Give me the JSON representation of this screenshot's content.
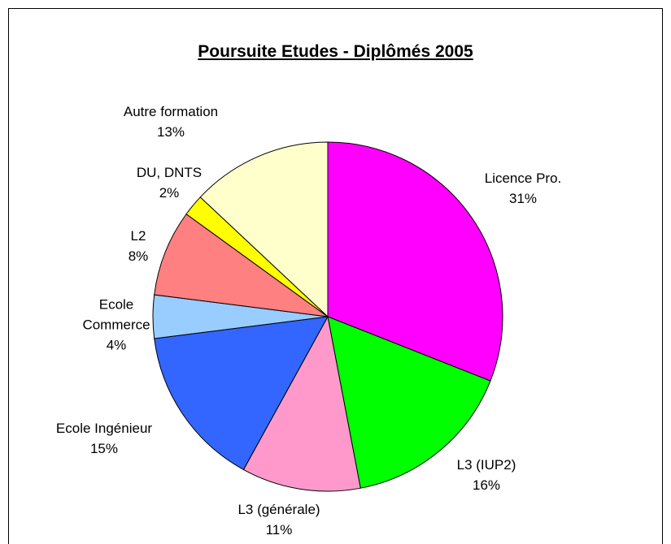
{
  "chart_data": {
    "type": "pie",
    "title": "Poursuite Etudes - Diplômés 2005",
    "categories": [
      "Licence Pro.",
      "L3 (IUP2)",
      "L3 (générale)",
      "Ecole Ingénieur",
      "Ecole Commerce",
      "L2",
      "DU, DNTS",
      "Autre formation"
    ],
    "values": [
      31,
      16,
      11,
      15,
      4,
      8,
      2,
      13
    ],
    "value_labels": [
      "31%",
      "16%",
      "11%",
      "15%",
      "4%",
      "8%",
      "2%",
      "13%"
    ],
    "colors": [
      "#ff00ff",
      "#00ff00",
      "#ff99cc",
      "#3366ff",
      "#99ccff",
      "#ff8080",
      "#ffff00",
      "#ffffcc"
    ]
  }
}
